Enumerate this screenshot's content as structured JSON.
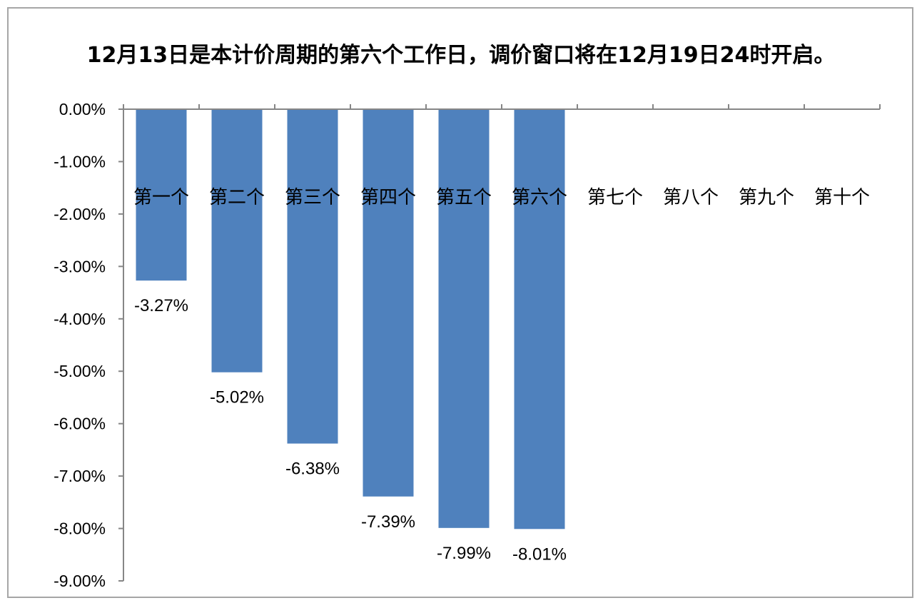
{
  "chart_data": {
    "type": "bar",
    "title": "12月13日是本计价周期的第六个工作日，调价窗口将在12月19日24时开启。",
    "categories": [
      "第一个",
      "第二个",
      "第三个",
      "第四个",
      "第五个",
      "第六个",
      "第七个",
      "第八个",
      "第九个",
      "第十个"
    ],
    "values": [
      -3.27,
      -5.02,
      -6.38,
      -7.39,
      -7.99,
      -8.01,
      null,
      null,
      null,
      null
    ],
    "data_labels": [
      "-3.27%",
      "-5.02%",
      "-6.38%",
      "-7.39%",
      "-7.99%",
      "-8.01%",
      "",
      "",
      "",
      ""
    ],
    "yticks": [
      "0.00%",
      "-1.00%",
      "-2.00%",
      "-3.00%",
      "-4.00%",
      "-5.00%",
      "-6.00%",
      "-7.00%",
      "-8.00%",
      "-9.00%"
    ],
    "ylim": [
      -9,
      0
    ],
    "xlabel": "",
    "ylabel": "",
    "grid": false,
    "legend": "none",
    "bar_color": "#4f81bd"
  }
}
